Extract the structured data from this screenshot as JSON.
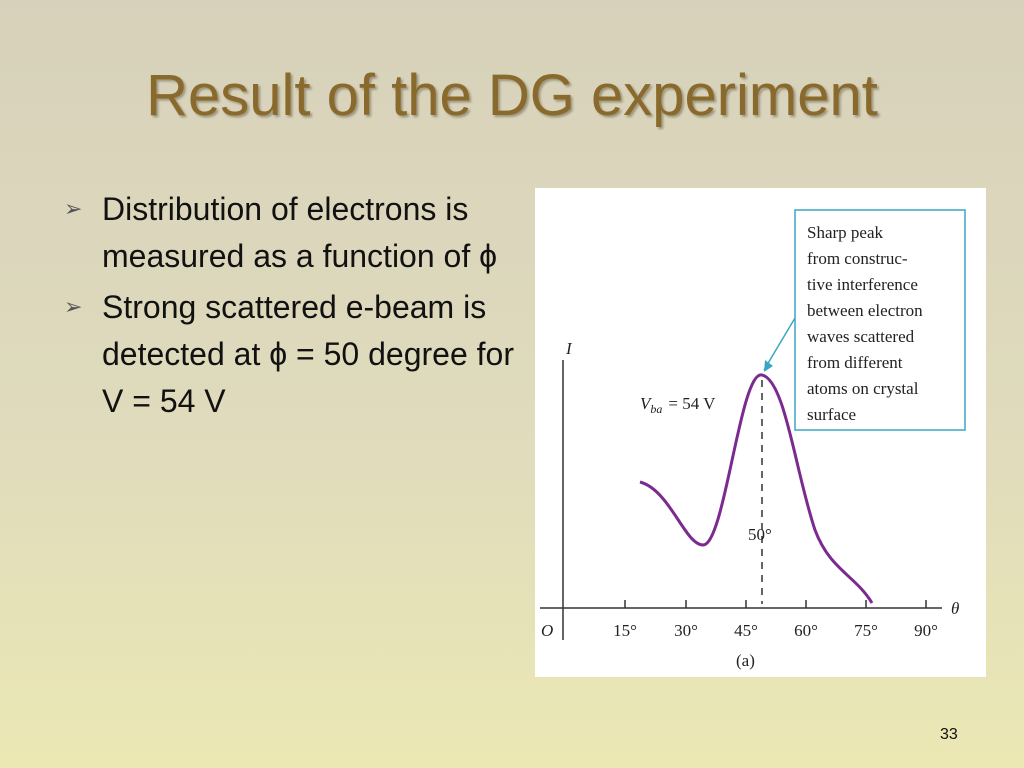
{
  "slide": {
    "title": "Result of the DG experiment",
    "bullets": [
      "Distribution of electrons is measured as a function of ϕ",
      "Strong scattered e-beam is detected at ϕ = 50 degree for V = 54 V"
    ],
    "page_number": "33",
    "figure": {
      "y_axis_label": "I",
      "x_axis_label": "θ",
      "origin_label": "O",
      "x_tick_labels": [
        "15°",
        "30°",
        "45°",
        "60°",
        "75°",
        "90°"
      ],
      "peak_label": "50°",
      "voltage_label": {
        "symbol": "V",
        "subscript": "ba",
        "rest": "= 54 V"
      },
      "caption": "(a)",
      "callout_lines": [
        "Sharp peak",
        "from construc-",
        "tive interference",
        "between electron",
        "waves scattered",
        "from different",
        "atoms on crystal",
        "surface"
      ]
    }
  }
}
